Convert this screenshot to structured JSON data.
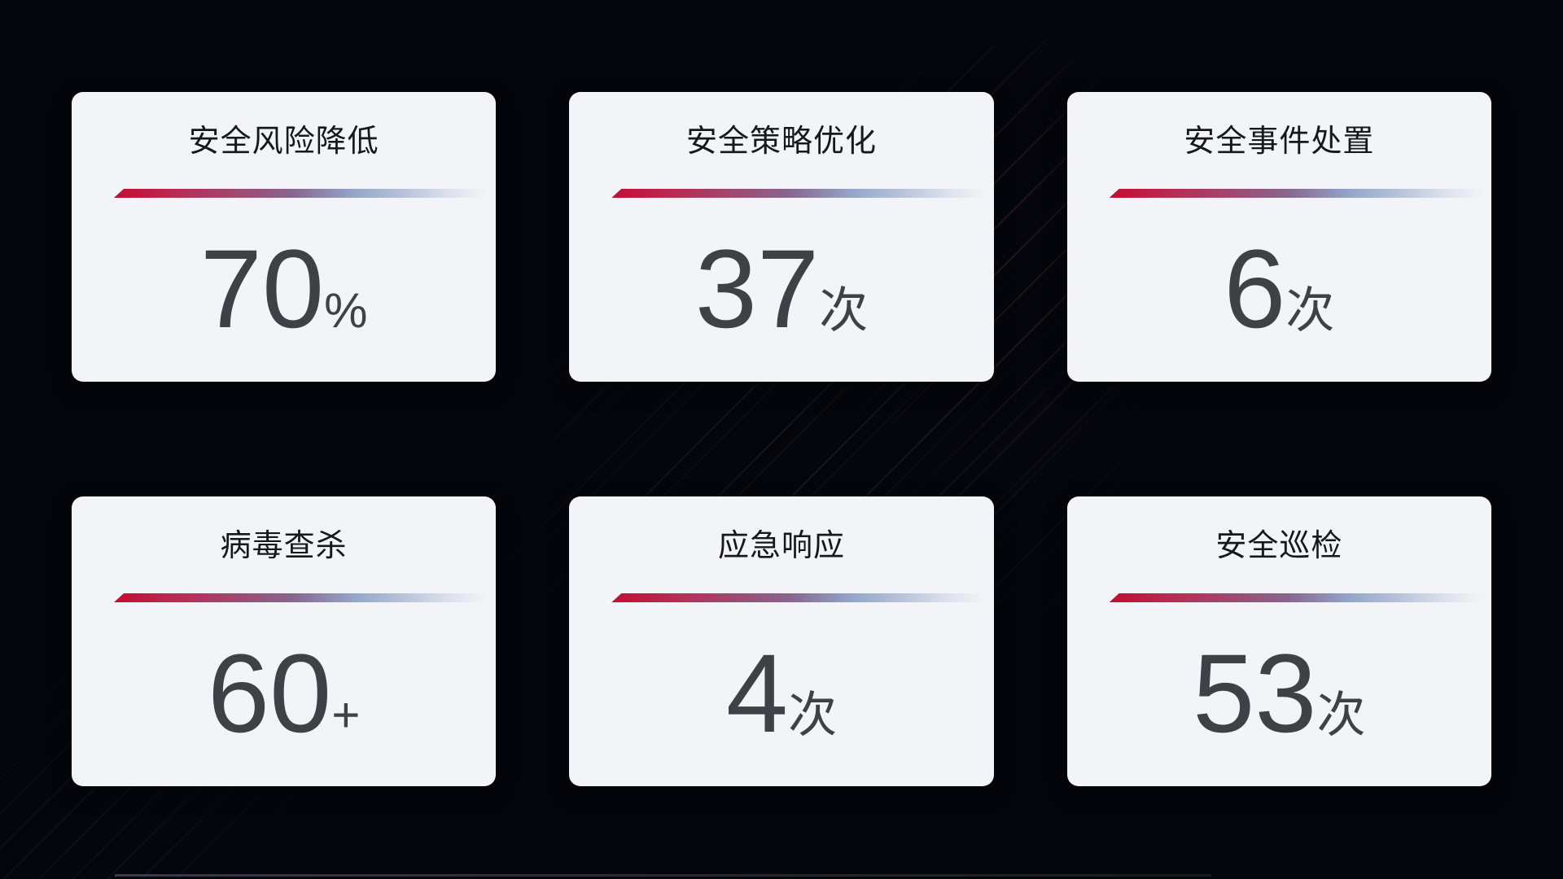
{
  "cards": [
    {
      "title": "安全风险降低",
      "value": "70",
      "unit": "%"
    },
    {
      "title": "安全策略优化",
      "value": "37",
      "unit": "次"
    },
    {
      "title": "安全事件处置",
      "value": "6",
      "unit": "次"
    },
    {
      "title": "病毒查杀",
      "value": "60",
      "unit": "+"
    },
    {
      "title": "应急响应",
      "value": "4",
      "unit": "次"
    },
    {
      "title": "安全巡检",
      "value": "53",
      "unit": "次"
    }
  ],
  "colors": {
    "card-bg": "#f3f4f8",
    "title-color": "#15181d",
    "value-color": "#3e4146",
    "divider-red": "#c60b33",
    "divider-blue": "#93a5c8"
  }
}
